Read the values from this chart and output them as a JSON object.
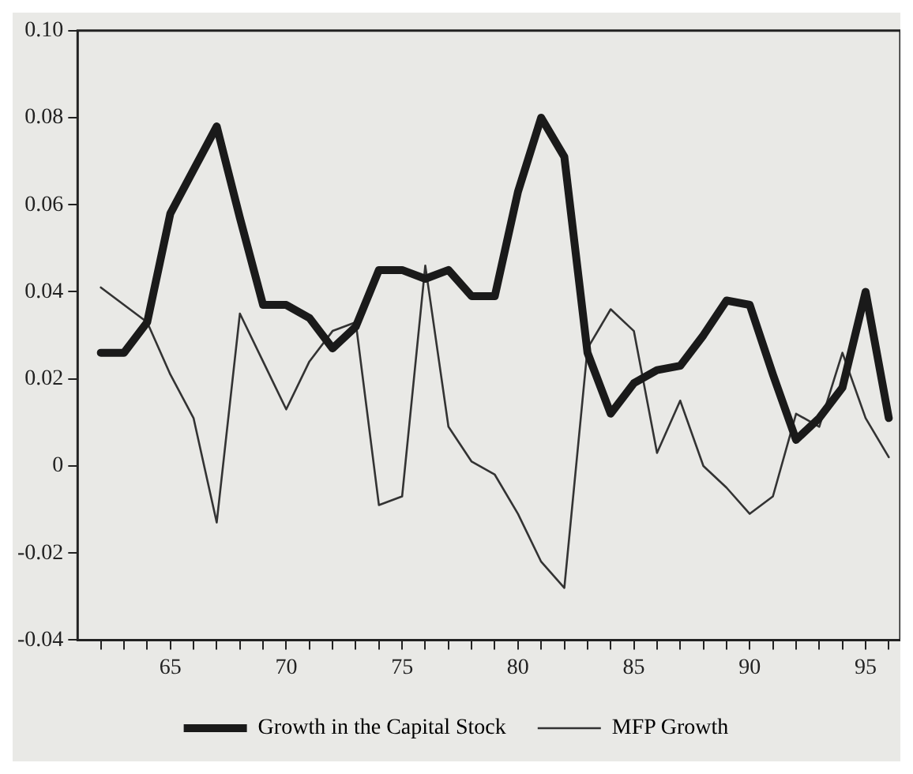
{
  "chart_data": {
    "type": "line",
    "x": [
      62,
      63,
      64,
      65,
      66,
      67,
      68,
      69,
      70,
      71,
      72,
      73,
      74,
      75,
      76,
      77,
      78,
      79,
      80,
      81,
      82,
      83,
      84,
      85,
      86,
      87,
      88,
      89,
      90,
      91,
      92,
      93,
      94,
      95,
      96
    ],
    "series": [
      {
        "name": "Growth in the Capital Stock",
        "color": "#1a1a1a",
        "values": [
          0.026,
          0.026,
          0.033,
          0.058,
          0.068,
          0.078,
          0.057,
          0.037,
          0.037,
          0.034,
          0.027,
          0.032,
          0.045,
          0.045,
          0.043,
          0.045,
          0.039,
          0.039,
          0.063,
          0.08,
          0.071,
          0.026,
          0.012,
          0.019,
          0.022,
          0.023,
          0.03,
          0.038,
          0.037,
          0.021,
          0.006,
          0.011,
          0.018,
          0.04,
          0.011
        ]
      },
      {
        "name": "MFP Growth",
        "color": "#333333",
        "values": [
          0.041,
          0.037,
          0.033,
          0.021,
          0.011,
          -0.013,
          0.035,
          0.024,
          0.013,
          0.024,
          0.031,
          0.033,
          -0.009,
          -0.007,
          0.046,
          0.009,
          0.001,
          -0.002,
          -0.011,
          -0.022,
          -0.028,
          0.027,
          0.036,
          0.031,
          0.003,
          0.015,
          0.0,
          -0.005,
          -0.011,
          -0.007,
          0.012,
          0.009,
          0.026,
          0.011,
          0.002
        ]
      }
    ],
    "xlim": [
      61,
      96.5
    ],
    "xticks": [
      {
        "value": 62,
        "label": null
      },
      {
        "value": 63,
        "label": null
      },
      {
        "value": 64,
        "label": null
      },
      65,
      {
        "value": 66,
        "label": null
      },
      {
        "value": 67,
        "label": null
      },
      {
        "value": 68,
        "label": null
      },
      {
        "value": 69,
        "label": null
      },
      70,
      {
        "value": 71,
        "label": null
      },
      {
        "value": 72,
        "label": null
      },
      {
        "value": 73,
        "label": null
      },
      {
        "value": 74,
        "label": null
      },
      75,
      {
        "value": 76,
        "label": null
      },
      {
        "value": 77,
        "label": null
      },
      {
        "value": 78,
        "label": null
      },
      {
        "value": 79,
        "label": null
      },
      80,
      {
        "value": 81,
        "label": null
      },
      {
        "value": 82,
        "label": null
      },
      {
        "value": 83,
        "label": null
      },
      {
        "value": 84,
        "label": null
      },
      85,
      {
        "value": 86,
        "label": null
      },
      {
        "value": 87,
        "label": null
      },
      {
        "value": 88,
        "label": null
      },
      {
        "value": 89,
        "label": null
      },
      90,
      {
        "value": 91,
        "label": null
      },
      {
        "value": 92,
        "label": null
      },
      {
        "value": 93,
        "label": null
      },
      {
        "value": 94,
        "label": null
      },
      95,
      {
        "value": 96,
        "label": null
      }
    ],
    "ylim": [
      -0.04,
      0.1
    ],
    "yticks": [
      -0.04,
      -0.02,
      0,
      0.02,
      0.04,
      0.06,
      0.08,
      {
        "value": 0.1,
        "label": "0.10"
      }
    ],
    "legend": "bottom",
    "marker": "none",
    "line_style": "solid"
  }
}
